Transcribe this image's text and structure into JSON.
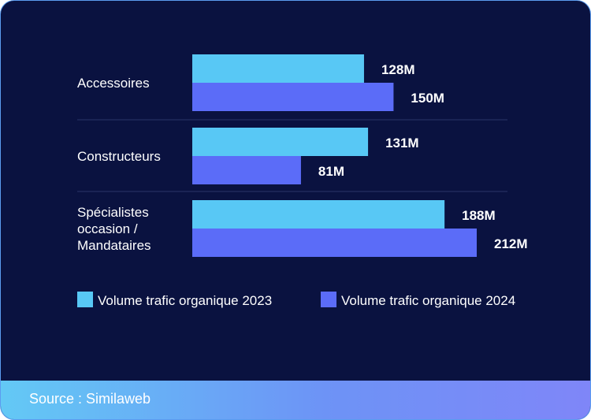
{
  "chart_data": {
    "type": "bar",
    "orientation": "horizontal",
    "categories": [
      [
        "Accessoires"
      ],
      [
        "Constructeurs"
      ],
      [
        "Spécialistes",
        "occasion /",
        "Mandataires"
      ]
    ],
    "series": [
      {
        "name": "Volume trafic organique 2023",
        "values": [
          128,
          131,
          188
        ],
        "labels": [
          "128M",
          "131M",
          "188M"
        ],
        "color": "#58c8f5"
      },
      {
        "name": "Volume trafic organique 2024",
        "values": [
          150,
          81,
          212
        ],
        "labels": [
          "150M",
          "81M",
          "212M"
        ],
        "color": "#5b6cf8"
      }
    ],
    "xlim": [
      0,
      212
    ],
    "grid": false,
    "legend_position": "bottom"
  },
  "colors": {
    "background": "#0a1240",
    "separator": "#2a3468",
    "text": "#ffffff"
  },
  "footer": {
    "source": "Source : Similaweb"
  }
}
